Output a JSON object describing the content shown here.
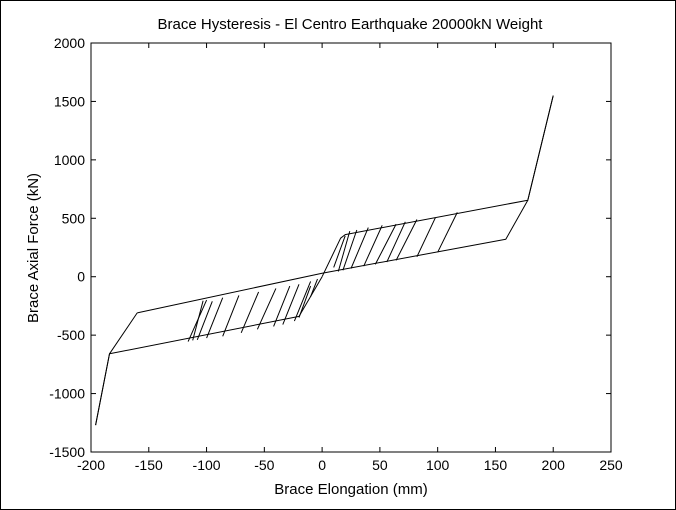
{
  "chart_data": {
    "type": "line",
    "title": "Brace Hysteresis - El Centro Earthquake 20000kN Weight",
    "xlabel": "Brace Elongation (mm)",
    "ylabel": "Brace Axial Force (kN)",
    "xlim": [
      -200,
      250
    ],
    "ylim": [
      -1500,
      2000
    ],
    "xticks": [
      -200,
      -150,
      -100,
      -50,
      0,
      50,
      100,
      150,
      200,
      250
    ],
    "yticks": [
      -1500,
      -1000,
      -500,
      0,
      500,
      1000,
      1500,
      2000
    ],
    "grid": false,
    "legend": "none",
    "line_color": "#000000",
    "series": [
      {
        "x": [
          0,
          16,
          20,
          178,
          200
        ],
        "y": [
          0,
          330,
          360,
          655,
          1550
        ]
      },
      {
        "x": [
          200,
          178,
          159,
          0,
          -160
        ],
        "y": [
          1550,
          655,
          320,
          30,
          -310
        ]
      },
      {
        "x": [
          -160,
          -184,
          -196
        ],
        "y": [
          -310,
          -660,
          -1270
        ]
      },
      {
        "x": [
          -196,
          -184,
          -20,
          0
        ],
        "y": [
          -1270,
          -660,
          -340,
          0
        ]
      },
      {
        "x": [
          117,
          100
        ],
        "y": [
          550,
          210
        ]
      },
      {
        "x": [
          98,
          82
        ],
        "y": [
          505,
          170
        ]
      },
      {
        "x": [
          82,
          64
        ],
        "y": [
          490,
          140
        ]
      },
      {
        "x": [
          72,
          56
        ],
        "y": [
          470,
          125
        ]
      },
      {
        "x": [
          64,
          46
        ],
        "y": [
          450,
          105
        ]
      },
      {
        "x": [
          52,
          36
        ],
        "y": [
          440,
          90
        ]
      },
      {
        "x": [
          40,
          25
        ],
        "y": [
          420,
          70
        ]
      },
      {
        "x": [
          30,
          18
        ],
        "y": [
          400,
          55
        ]
      },
      {
        "x": [
          24,
          14
        ],
        "y": [
          390,
          45
        ]
      },
      {
        "x": [
          -100,
          -116
        ],
        "y": [
          -200,
          -555
        ]
      },
      {
        "x": [
          -103,
          -112
        ],
        "y": [
          -205,
          -545
        ]
      },
      {
        "x": [
          -95,
          -108
        ],
        "y": [
          -210,
          -540
        ]
      },
      {
        "x": [
          -86,
          -100
        ],
        "y": [
          -180,
          -525
        ]
      },
      {
        "x": [
          -72,
          -86
        ],
        "y": [
          -160,
          -510
        ]
      },
      {
        "x": [
          -55,
          -70
        ],
        "y": [
          -130,
          -480
        ]
      },
      {
        "x": [
          -40,
          -56
        ],
        "y": [
          -100,
          -450
        ]
      },
      {
        "x": [
          -28,
          -42
        ],
        "y": [
          -80,
          -425
        ]
      },
      {
        "x": [
          -20,
          -34
        ],
        "y": [
          -65,
          -410
        ]
      },
      {
        "x": [
          -10,
          -24
        ],
        "y": [
          -40,
          -380
        ]
      },
      {
        "x": [
          -4,
          -10
        ],
        "y": [
          -20,
          -170
        ]
      },
      {
        "x": [
          10,
          20
        ],
        "y": [
          80,
          350
        ]
      },
      {
        "x": [
          -10,
          -20
        ],
        "y": [
          -80,
          -350
        ]
      }
    ]
  }
}
